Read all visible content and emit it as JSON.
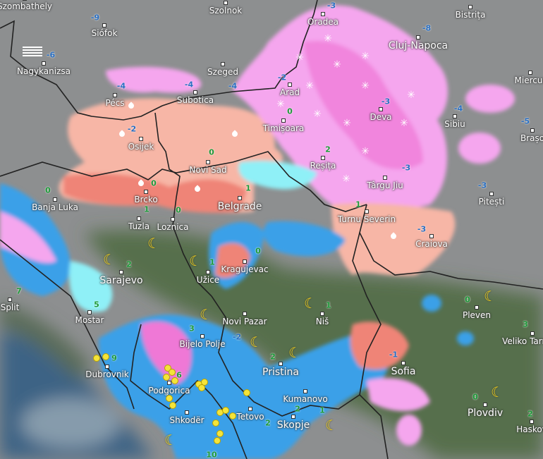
{
  "map": {
    "colors": {
      "land": "#8d8f90",
      "forest": "#4e6a3e",
      "sea": "#3e6485",
      "snow": "#f5a6ee",
      "snow_heavy": "#ef78d6",
      "mix": "#f7b6a6",
      "mix_heavy": "#ef8477",
      "rain": "#8ff0f7",
      "rain_heavy": "#3aa0e8",
      "border": "#222222",
      "temp_neg": "#2a6fc2",
      "temp_pos": "#1f9a3a"
    },
    "cities": [
      {
        "name": "Szombathely"
      },
      {
        "name": "Szolnok"
      },
      {
        "name": "Siófok"
      },
      {
        "name": "Nagykanizsa"
      },
      {
        "name": "Szeged"
      },
      {
        "name": "Pécs"
      },
      {
        "name": "Subotica"
      },
      {
        "name": "Osijek"
      },
      {
        "name": "Novi Sad"
      },
      {
        "name": "Banja Luka"
      },
      {
        "name": "Brcko"
      },
      {
        "name": "Belgrade"
      },
      {
        "name": "Tuzla"
      },
      {
        "name": "Loznica"
      },
      {
        "name": "Oradea"
      },
      {
        "name": "Bistrița"
      },
      {
        "name": "Cluj-Napoca"
      },
      {
        "name": "Arad"
      },
      {
        "name": "Timișoara"
      },
      {
        "name": "Deva"
      },
      {
        "name": "Sibiu"
      },
      {
        "name": "Brașo"
      },
      {
        "name": "Miercur"
      },
      {
        "name": "Reșița"
      },
      {
        "name": "Târgu Jiu"
      },
      {
        "name": "Pitești"
      },
      {
        "name": "Turnu Severin"
      },
      {
        "name": "Craiova"
      },
      {
        "name": "Sarajevo"
      },
      {
        "name": "Užice"
      },
      {
        "name": "Kragujevac"
      },
      {
        "name": "Split"
      },
      {
        "name": "Mostar"
      },
      {
        "name": "Novi Pazar"
      },
      {
        "name": "Niš"
      },
      {
        "name": "Pleven"
      },
      {
        "name": "Veliko Tarnovo"
      },
      {
        "name": "Bijelo Polje"
      },
      {
        "name": "Dubrovnik"
      },
      {
        "name": "Podgorica"
      },
      {
        "name": "Pristina"
      },
      {
        "name": "Sofia"
      },
      {
        "name": "Tetovo"
      },
      {
        "name": "Kumanovo"
      },
      {
        "name": "Skopje"
      },
      {
        "name": "Shkodër"
      },
      {
        "name": "Plovdiv"
      },
      {
        "name": "Haskov"
      }
    ],
    "temperatures": [
      "-9",
      "-6",
      "-4",
      "-4",
      "-4",
      "-2",
      "0",
      "0",
      "0",
      "0",
      "1",
      "1",
      "-3",
      "-8",
      "-2",
      "0",
      "-3",
      "-4",
      "-5",
      "2",
      "-3",
      "-3",
      "1",
      "-3",
      "0",
      "2",
      "7",
      "5",
      "1",
      "3",
      "-2",
      "9",
      "6",
      "1",
      "0",
      "3",
      "-1",
      "2",
      "0",
      "2",
      "1",
      "2",
      "2",
      "10"
    ],
    "weather_icons": [
      "fog-icon",
      "rain-drop-icon",
      "snowflake-icon",
      "crescent-moon-icon",
      "lightning-icon"
    ]
  }
}
